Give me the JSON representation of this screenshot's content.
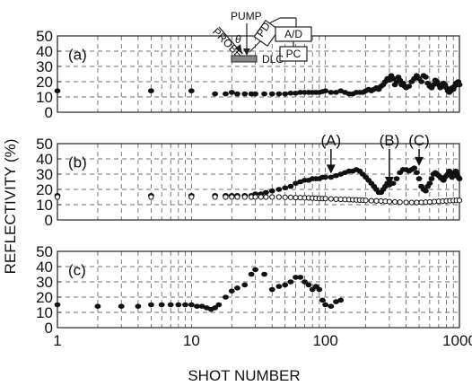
{
  "inset": {
    "pump": "PUMP",
    "probe": "PROBE",
    "theta": "θ",
    "pd": "PD",
    "ad": "A/D",
    "pc": "PC",
    "sample": "DLC"
  },
  "chart_data": {
    "type": "scatter",
    "xlabel": "SHOT NUMBER",
    "ylabel": "REFLECTIVITY (%)",
    "x_scale": "log",
    "xlim": [
      1,
      1000
    ],
    "x_ticks": [
      "1",
      "10",
      "100",
      "1000"
    ],
    "y_ticks": [
      "0",
      "10",
      "20",
      "30",
      "40",
      "50"
    ],
    "grid": true,
    "panels": [
      {
        "label": "(a)",
        "ylim": [
          0,
          50
        ],
        "series": [
          {
            "marker": "filled",
            "x": [
              1,
              5,
              10,
              15,
              18,
              20,
              22,
              25,
              28,
              30,
              35,
              40,
              45,
              50,
              55,
              60,
              65,
              70,
              75,
              80,
              85,
              90,
              95,
              100,
              110,
              120,
              130,
              140,
              150,
              160,
              170,
              180,
              190,
              200,
              210,
              220,
              230,
              240,
              250,
              260,
              270,
              280,
              290,
              300,
              310,
              320,
              330,
              340,
              350,
              360,
              370,
              380,
              390,
              400,
              420,
              440,
              460,
              480,
              500,
              520,
              540,
              560,
              580,
              600,
              620,
              640,
              660,
              680,
              700,
              720,
              740,
              760,
              780,
              800,
              820,
              840,
              860,
              880,
              900,
              920,
              940,
              960,
              980,
              1000
            ],
            "y": [
              14,
              14,
              14,
              12,
              12,
              13,
              12,
              12,
              12,
              12,
              12,
              12,
              12,
              12,
              12.5,
              12.5,
              13,
              13,
              13,
              13,
              13,
              13,
              13.5,
              14,
              13,
              13,
              14,
              13,
              12,
              12,
              13,
              13,
              13,
              14,
              15,
              14,
              15,
              16,
              15,
              17,
              18,
              20,
              22,
              21,
              24,
              22,
              18,
              20,
              23,
              21,
              18,
              19,
              17,
              16,
              17,
              20,
              22,
              24,
              22,
              20,
              24,
              23,
              19,
              17,
              16,
              18,
              21,
              20,
              18,
              16,
              17,
              19,
              18,
              16,
              14,
              13,
              14,
              16,
              15,
              17,
              19,
              18,
              20,
              18
            ]
          }
        ]
      },
      {
        "label": "(b)",
        "ylim": [
          0,
          50
        ],
        "annotations": [
          {
            "text": "(A)",
            "x": 110,
            "y": 28
          },
          {
            "text": "(B)",
            "x": 300,
            "y": 20
          },
          {
            "text": "(C)",
            "x": 500,
            "y": 33
          }
        ],
        "series": [
          {
            "marker": "filled",
            "x": [
              1,
              5,
              10,
              15,
              18,
              20,
              22,
              25,
              28,
              30,
              33,
              36,
              40,
              45,
              50,
              55,
              60,
              65,
              70,
              75,
              80,
              85,
              90,
              95,
              100,
              110,
              120,
              130,
              140,
              150,
              160,
              170,
              180,
              190,
              200,
              210,
              220,
              230,
              240,
              250,
              260,
              270,
              280,
              290,
              300,
              320,
              340,
              360,
              380,
              400,
              420,
              440,
              460,
              480,
              500,
              520,
              540,
              560,
              580,
              600,
              620,
              640,
              660,
              680,
              700,
              720,
              740,
              760,
              780,
              800,
              820,
              840,
              860,
              880,
              900,
              920,
              940,
              960,
              980,
              1000
            ],
            "y": [
              16,
              16,
              16,
              16,
              16,
              16,
              16,
              16,
              16,
              17,
              17,
              18,
              19,
              20,
              21,
              22,
              24,
              25,
              26,
              26,
              27,
              27,
              27,
              28,
              28,
              28,
              29,
              30,
              31,
              32,
              32,
              33,
              32,
              30,
              28,
              26,
              24,
              22,
              20,
              18,
              18,
              20,
              22,
              24,
              23,
              24,
              27,
              31,
              33,
              33,
              32,
              33,
              34,
              31,
              27,
              22,
              20,
              19,
              22,
              24,
              27,
              30,
              31,
              30,
              29,
              28,
              27,
              26,
              28,
              29,
              30,
              32,
              30,
              28,
              29,
              31,
              32,
              30,
              28,
              27
            ]
          },
          {
            "marker": "open",
            "x": [
              1,
              5,
              10,
              15,
              18,
              20,
              22,
              25,
              28,
              30,
              33,
              36,
              40,
              45,
              50,
              55,
              60,
              65,
              70,
              75,
              80,
              85,
              90,
              95,
              100,
              110,
              120,
              130,
              140,
              150,
              160,
              170,
              180,
              190,
              200,
              220,
              240,
              260,
              280,
              300,
              330,
              360,
              400,
              440,
              480,
              520,
              560,
              600,
              650,
              700,
              750,
              800,
              850,
              900,
              950,
              1000
            ],
            "y": [
              15,
              15,
              15,
              15,
              15,
              15,
              15,
              15,
              15,
              15,
              15,
              15,
              15,
              15,
              14.8,
              14.8,
              14.6,
              14.6,
              14.5,
              14.4,
              14.3,
              14.2,
              14,
              14,
              14,
              13.8,
              13.6,
              13.5,
              13.4,
              13.3,
              13.2,
              13.1,
              13,
              12.9,
              12.8,
              12.6,
              12.5,
              12.4,
              12.2,
              12,
              11.8,
              11.6,
              11.5,
              11.4,
              11.4,
              11.5,
              11.6,
              11.8,
              12,
              12.2,
              12.3,
              12.5,
              12.6,
              12.7,
              12.8,
              12.8
            ]
          }
        ]
      },
      {
        "label": "(c)",
        "ylim": [
          0,
          50
        ],
        "series": [
          {
            "marker": "filled",
            "x": [
              1,
              2,
              3,
              4,
              5,
              6,
              7,
              8,
              9,
              10,
              11,
              12,
              13,
              14,
              15,
              16,
              18,
              20,
              22,
              25,
              28,
              30,
              35,
              40,
              45,
              50,
              55,
              60,
              65,
              70,
              75,
              80,
              85,
              90,
              95,
              100,
              110,
              120,
              130
            ],
            "y": [
              15,
              14,
              14,
              14,
              15,
              15,
              15,
              15,
              15,
              15,
              14,
              14,
              13,
              12,
              13,
              15,
              20,
              24,
              26,
              28,
              35,
              38,
              35,
              25,
              27,
              28,
              30,
              33,
              33,
              30,
              28,
              25,
              27,
              25,
              18,
              15,
              14,
              17,
              18
            ]
          }
        ]
      }
    ]
  }
}
